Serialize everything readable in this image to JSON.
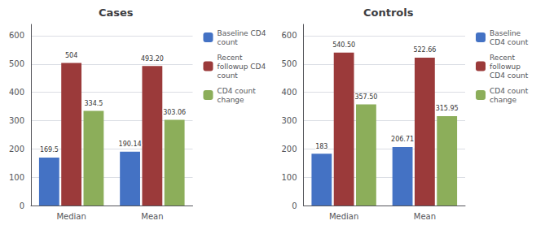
{
  "chart_data": [
    {
      "type": "bar",
      "title": "Cases",
      "categories": [
        "Median",
        "Mean"
      ],
      "series": [
        {
          "name": "Baseline CD4\ncount",
          "color": "#4472C4",
          "values": [
            169.5,
            190.14
          ],
          "value_labels": [
            "169.5",
            "190.14"
          ]
        },
        {
          "name": "Recent\nfollowup CD4\ncount",
          "color": "#9B3A3A",
          "values": [
            504.0,
            493.2
          ],
          "value_labels": [
            "504",
            "493.20"
          ]
        },
        {
          "name": "CD4 count\nchange",
          "color": "#8CAE5A",
          "values": [
            334.5,
            303.06
          ],
          "value_labels": [
            "334.5",
            "303.06"
          ]
        }
      ],
      "ylim": [
        0,
        640
      ],
      "yticks": [
        0,
        100,
        200,
        300,
        400,
        500,
        600
      ],
      "grid": true,
      "legend": "right",
      "data_labels": true
    },
    {
      "type": "bar",
      "title": "Controls",
      "categories": [
        "Median",
        "Mean"
      ],
      "series": [
        {
          "name": "Baseline\nCD4 count",
          "color": "#4472C4",
          "values": [
            183.0,
            206.71
          ],
          "value_labels": [
            "183",
            "206.71"
          ]
        },
        {
          "name": "Recent\nfollowup\nCD4 count",
          "color": "#9B3A3A",
          "values": [
            540.5,
            522.66
          ],
          "value_labels": [
            "540.50",
            "522.66"
          ]
        },
        {
          "name": "CD4 count\nchange",
          "color": "#8CAE5A",
          "values": [
            357.5,
            315.95
          ],
          "value_labels": [
            "357.50",
            "315.95"
          ]
        }
      ],
      "ylim": [
        0,
        640
      ],
      "yticks": [
        0,
        100,
        200,
        300,
        400,
        500,
        600
      ],
      "grid": true,
      "legend": "right",
      "data_labels": true
    }
  ]
}
